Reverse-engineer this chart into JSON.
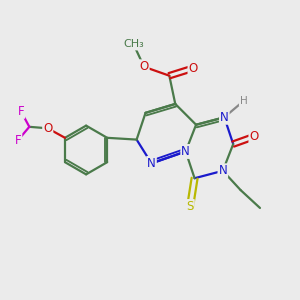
{
  "bg_color": "#ebebeb",
  "bond_color": "#4a7a4a",
  "bond_width": 1.6,
  "atom_colors": {
    "N": "#1a1acc",
    "O": "#cc1010",
    "S": "#b8b800",
    "F": "#cc00cc",
    "C": "#4a7a4a",
    "H": "#888888"
  },
  "font_size": 8.5,
  "fig_size": [
    3.0,
    3.0
  ],
  "dpi": 100
}
